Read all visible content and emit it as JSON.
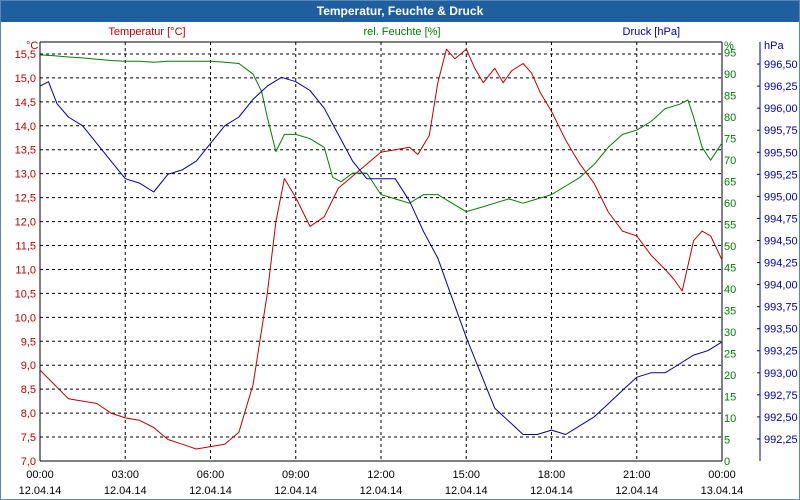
{
  "window": {
    "title": "Temperatur, Feuchte & Druck"
  },
  "colors": {
    "temperature": "#c00000",
    "humidity": "#008000",
    "pressure": "#0000a0",
    "grid": "#000000",
    "axis_text": "#000000"
  },
  "chart_data": {
    "type": "line",
    "grid": true,
    "axes": {
      "temperature": {
        "label": "Temperatur [°C]",
        "unit": "°C",
        "side": "left",
        "ylim": [
          7.0,
          15.75
        ],
        "ticks": [
          "15,5",
          "15,0",
          "14,5",
          "14,0",
          "13,5",
          "13,0",
          "12,5",
          "12,0",
          "11,5",
          "11,0",
          "10,5",
          "10,0",
          "9,5",
          "9,0",
          "8,5",
          "8,0",
          "7,5",
          "7,0"
        ]
      },
      "humidity": {
        "label": "rel. Feuchte [%]",
        "unit": "%",
        "side": "inner-right",
        "ylim": [
          0,
          97.5
        ],
        "ticks": [
          "95",
          "90",
          "85",
          "80",
          "75",
          "70",
          "65",
          "60",
          "55",
          "50",
          "45",
          "40",
          "35",
          "30",
          "25",
          "20",
          "15",
          "10",
          "5",
          "0"
        ]
      },
      "pressure": {
        "label": "Druck [hPa]",
        "unit": "hPa",
        "side": "right",
        "ylim": [
          992.0,
          996.75
        ],
        "ticks": [
          "996,50",
          "996,25",
          "996,00",
          "995,75",
          "995,50",
          "995,25",
          "995,00",
          "994,75",
          "994,50",
          "994,25",
          "994,00",
          "993,75",
          "993,50",
          "993,25",
          "993,00",
          "992,75",
          "992,50",
          "992,25"
        ]
      }
    },
    "x_ticks": [
      {
        "time": "00:00",
        "date": "12.04.14"
      },
      {
        "time": "03:00",
        "date": "12.04.14"
      },
      {
        "time": "06:00",
        "date": "12.04.14"
      },
      {
        "time": "09:00",
        "date": "12.04.14"
      },
      {
        "time": "12:00",
        "date": "12.04.14"
      },
      {
        "time": "15:00",
        "date": "12.04.14"
      },
      {
        "time": "18:00",
        "date": "12.04.14"
      },
      {
        "time": "21:00",
        "date": "12.04.14"
      },
      {
        "time": "00:00",
        "date": "13.04.14"
      }
    ],
    "xlim_hours": [
      0,
      24
    ],
    "series": [
      {
        "name": "Temperatur [°C]",
        "axis": "temperature",
        "x": [
          0,
          0.5,
          1,
          1.5,
          2,
          2.5,
          3,
          3.5,
          4,
          4.5,
          5,
          5.5,
          6,
          6.5,
          7,
          7.5,
          8,
          8.3,
          8.6,
          9,
          9.5,
          10,
          10.5,
          11,
          11.5,
          12,
          12.5,
          13,
          13.3,
          13.7,
          14,
          14.3,
          14.6,
          15,
          15.3,
          15.6,
          16,
          16.3,
          16.6,
          17,
          17.3,
          17.6,
          18,
          18.5,
          19,
          19.5,
          20,
          20.5,
          21,
          21.5,
          22,
          22.3,
          22.6,
          23,
          23.3,
          23.6,
          24
        ],
        "values": [
          8.9,
          8.6,
          8.3,
          8.25,
          8.2,
          8.0,
          7.9,
          7.85,
          7.7,
          7.45,
          7.35,
          7.25,
          7.3,
          7.35,
          7.6,
          8.6,
          10.5,
          12.0,
          12.9,
          12.5,
          11.9,
          12.1,
          12.7,
          12.95,
          13.2,
          13.45,
          13.5,
          13.55,
          13.4,
          13.8,
          14.9,
          15.6,
          15.4,
          15.6,
          15.2,
          14.9,
          15.2,
          14.9,
          15.15,
          15.3,
          15.1,
          14.7,
          14.3,
          13.7,
          13.2,
          12.8,
          12.2,
          11.8,
          11.7,
          11.3,
          11.0,
          10.8,
          10.55,
          11.6,
          11.8,
          11.7,
          11.2
        ]
      },
      {
        "name": "rel. Feuchte [%]",
        "axis": "humidity",
        "x": [
          0,
          0.5,
          1,
          1.5,
          2,
          2.5,
          3,
          3.5,
          4,
          4.5,
          5,
          5.5,
          6,
          6.5,
          7,
          7.5,
          7.8,
          8,
          8.3,
          8.6,
          9,
          9.5,
          10,
          10.3,
          10.6,
          11,
          11.5,
          12,
          12.5,
          13,
          13.5,
          14,
          14.5,
          15,
          15.5,
          16,
          16.5,
          17,
          17.5,
          18,
          18.5,
          19,
          19.5,
          20,
          20.5,
          21,
          21.5,
          22,
          22.5,
          22.8,
          23,
          23.3,
          23.6,
          24
        ],
        "values": [
          94.5,
          94.3,
          94.0,
          93.8,
          93.5,
          93.2,
          93.0,
          93.0,
          92.8,
          93.0,
          93.0,
          93.0,
          93.0,
          92.8,
          92.5,
          90.0,
          86.0,
          80.0,
          72.0,
          76.0,
          76.0,
          75.0,
          73.0,
          66.0,
          65.0,
          67.0,
          67.0,
          62.0,
          61.0,
          60.0,
          62.0,
          62.0,
          60.0,
          58.0,
          59.0,
          60.0,
          61.0,
          60.0,
          61.0,
          62.0,
          64.0,
          66.0,
          69.0,
          73.0,
          76.0,
          77.0,
          79.0,
          82.0,
          83.0,
          84.0,
          80.0,
          73.0,
          70.0,
          74.0
        ]
      },
      {
        "name": "Druck [hPa]",
        "axis": "pressure",
        "x": [
          0,
          0.3,
          0.6,
          1,
          1.5,
          2,
          2.5,
          3,
          3.5,
          4,
          4.5,
          5,
          5.5,
          6,
          6.5,
          7,
          7.5,
          8,
          8.5,
          9,
          9.5,
          10,
          10.5,
          11,
          11.5,
          12,
          12.5,
          13,
          13.5,
          14,
          14.5,
          15,
          15.5,
          16,
          16.5,
          17,
          17.5,
          18,
          18.5,
          19,
          19.5,
          20,
          20.5,
          21,
          21.5,
          22,
          22.5,
          23,
          23.5,
          24
        ],
        "values": [
          996.25,
          996.3,
          996.05,
          995.9,
          995.8,
          995.6,
          995.4,
          995.2,
          995.15,
          995.05,
          995.25,
          995.3,
          995.4,
          995.6,
          995.8,
          995.9,
          996.1,
          996.25,
          996.35,
          996.3,
          996.2,
          996.0,
          995.7,
          995.4,
          995.2,
          995.2,
          995.2,
          994.95,
          994.6,
          994.3,
          993.85,
          993.4,
          993.0,
          992.6,
          992.45,
          992.3,
          992.3,
          992.35,
          992.3,
          992.4,
          992.5,
          992.65,
          992.8,
          992.95,
          993.0,
          993.0,
          993.1,
          993.2,
          993.25,
          993.35
        ]
      }
    ]
  }
}
